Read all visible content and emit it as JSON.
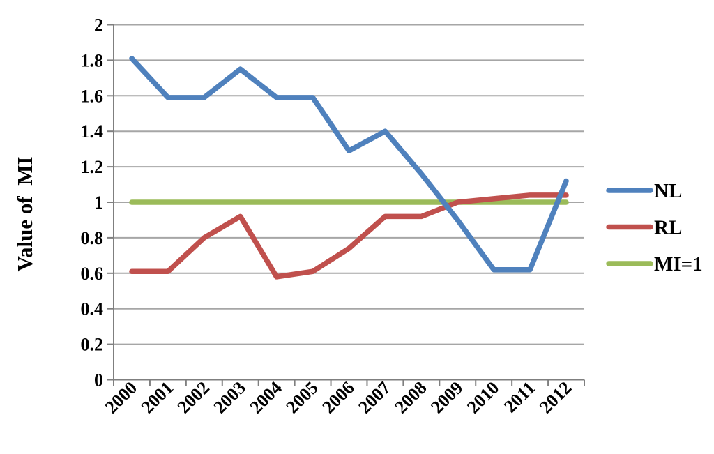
{
  "chart_data": {
    "type": "line",
    "title": "",
    "xlabel": "",
    "ylabel": "Value of  MI",
    "categories": [
      "2000",
      "2001",
      "2002",
      "2003",
      "2004",
      "2005",
      "2006",
      "2007",
      "2008",
      "2009",
      "2010",
      "2011",
      "2012"
    ],
    "series": [
      {
        "name": "NL",
        "color": "#4F81BD",
        "values": [
          1.81,
          1.59,
          1.59,
          1.75,
          1.59,
          1.59,
          1.29,
          1.4,
          1.16,
          0.9,
          0.62,
          0.62,
          1.12
        ]
      },
      {
        "name": "RL",
        "color": "#C0504D",
        "values": [
          0.61,
          0.61,
          0.8,
          0.92,
          0.58,
          0.61,
          0.74,
          0.92,
          0.92,
          1.0,
          1.02,
          1.04,
          1.04
        ]
      },
      {
        "name": "MI=1",
        "color": "#9BBB59",
        "values": [
          1,
          1,
          1,
          1,
          1,
          1,
          1,
          1,
          1,
          1,
          1,
          1,
          1
        ]
      }
    ],
    "ylim": [
      0,
      2
    ],
    "ytick_labels": [
      "0",
      "0.2",
      "0.4",
      "0.6",
      "0.8",
      "1",
      "1.2",
      "1.4",
      "1.6",
      "1.8",
      "2"
    ],
    "grid": true,
    "legend_position": "right",
    "x_label_rotation_deg": 45,
    "colors": {
      "gridline": "#A6A6A6",
      "axis": "#7F7F7F",
      "text": "#000000",
      "background": "#FFFFFF"
    }
  }
}
